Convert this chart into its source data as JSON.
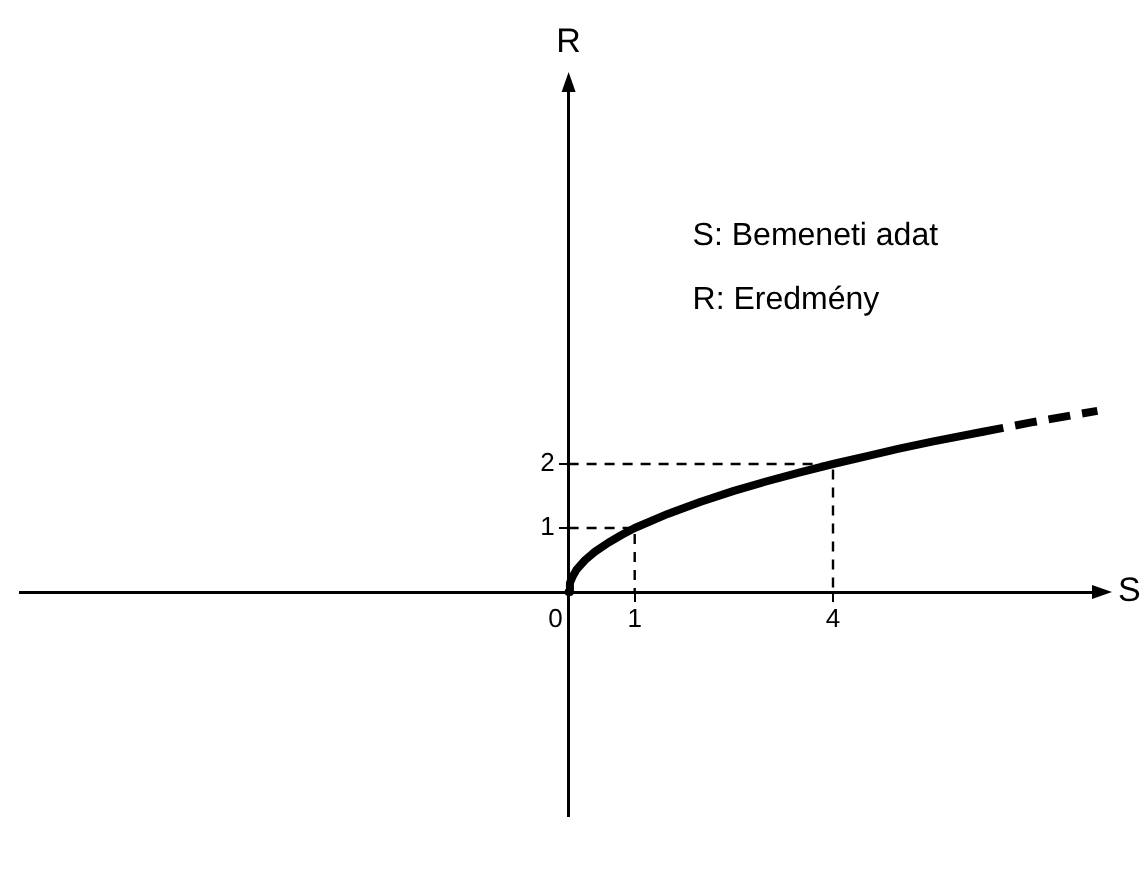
{
  "chart_data": {
    "type": "line",
    "xlabel": "S",
    "ylabel": "R",
    "annotations": [
      "S: Bemeneti adat",
      "R: Eredmény"
    ],
    "xlim": [
      -8.3,
      8.1
    ],
    "ylim": [
      -3.5,
      8
    ],
    "xticks": [
      0,
      1,
      4
    ],
    "yticks": [
      1,
      2
    ],
    "marker": "none",
    "series": [
      {
        "color": "#000000",
        "line_style": "solid",
        "x": [
          0,
          0.02,
          0.06,
          0.12,
          0.25,
          0.4,
          0.6,
          0.8,
          1,
          1.5,
          2,
          2.5,
          3,
          3.5,
          4,
          4.5,
          5,
          5.5,
          6.25
        ],
        "values": [
          0,
          0.14,
          0.24,
          0.35,
          0.5,
          0.63,
          0.77,
          0.89,
          1,
          1.22,
          1.41,
          1.58,
          1.73,
          1.87,
          2,
          2.12,
          2.24,
          2.35,
          2.5
        ]
      },
      {
        "color": "#000000",
        "line_style": "dashed",
        "x": [
          6.25,
          7,
          8
        ],
        "values": [
          2.5,
          2.65,
          2.83
        ]
      },
      {
        "color": "#000000",
        "line_style": "dashed",
        "x": [
          0,
          1,
          1
        ],
        "values": [
          1,
          1,
          0
        ]
      },
      {
        "color": "#000000",
        "line_style": "dashed",
        "x": [
          0,
          4,
          4
        ],
        "values": [
          2,
          2,
          0
        ]
      }
    ]
  }
}
